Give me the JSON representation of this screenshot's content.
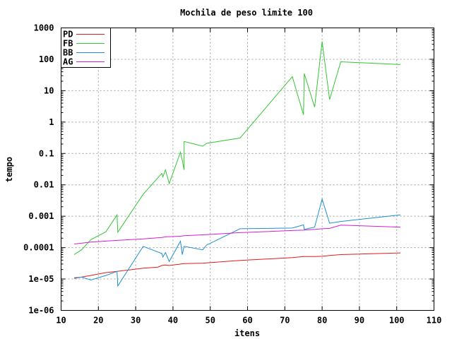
{
  "chart_data": {
    "type": "line",
    "title": "Mochila de peso limite 100",
    "xlabel": "itens",
    "ylabel": "tempo",
    "xlim": [
      10,
      110
    ],
    "ylim": [
      1e-06,
      1000
    ],
    "yscale": "log",
    "grid": true,
    "legend_position": "top-left",
    "x_ticks": [
      "10",
      "20",
      "30",
      "40",
      "50",
      "60",
      "70",
      "80",
      "90",
      "100",
      "110"
    ],
    "y_ticks": [
      "1e-06",
      "1e-05",
      "0.0001",
      "0.001",
      "0.01",
      "0.1",
      "1",
      "10",
      "100",
      "1000"
    ],
    "series": [
      {
        "name": "PD",
        "color": "#e41a1c",
        "points": [
          [
            13.5,
            1.05e-05
          ],
          [
            18,
            1.3e-05
          ],
          [
            22,
            1.6e-05
          ],
          [
            25,
            1.75e-05
          ],
          [
            32,
            2.2e-05
          ],
          [
            36,
            2.4e-05
          ],
          [
            37,
            2.7e-05
          ],
          [
            38,
            2.8e-05
          ],
          [
            39,
            2.7e-05
          ],
          [
            42,
            3e-05
          ],
          [
            43,
            3.1e-05
          ],
          [
            48,
            3.2e-05
          ],
          [
            58,
            3.9e-05
          ],
          [
            72,
            4.8e-05
          ],
          [
            75,
            5.2e-05
          ],
          [
            78,
            5.2e-05
          ],
          [
            80,
            5.3e-05
          ],
          [
            82,
            5.6e-05
          ],
          [
            85,
            6e-05
          ],
          [
            101,
            6.8e-05
          ]
        ]
      },
      {
        "name": "FB",
        "color": "#33c633",
        "points": [
          [
            13.5,
            6e-05
          ],
          [
            15.5,
            8.5e-05
          ],
          [
            18,
            0.00018
          ],
          [
            22,
            0.00032
          ],
          [
            25,
            0.0011
          ],
          [
            25.2,
            0.00031
          ],
          [
            32,
            0.005
          ],
          [
            37,
            0.023
          ],
          [
            37.3,
            0.018
          ],
          [
            38,
            0.03
          ],
          [
            39,
            0.011
          ],
          [
            42,
            0.11
          ],
          [
            42.5,
            0.06
          ],
          [
            43,
            0.03
          ],
          [
            43,
            0.24
          ],
          [
            48,
            0.17
          ],
          [
            49,
            0.21
          ],
          [
            58,
            0.31
          ],
          [
            72,
            28
          ],
          [
            75,
            1.7
          ],
          [
            75.2,
            35
          ],
          [
            78,
            3
          ],
          [
            80,
            370
          ],
          [
            82,
            5.2
          ],
          [
            85,
            83
          ],
          [
            101,
            68
          ]
        ]
      },
      {
        "name": "BB",
        "color": "#1f8fcf",
        "points": [
          [
            13.5,
            1.1e-05
          ],
          [
            15.5,
            1.15e-05
          ],
          [
            18,
            9.3e-06
          ],
          [
            22,
            1.3e-05
          ],
          [
            25,
            1.75e-05
          ],
          [
            25.2,
            6e-06
          ],
          [
            32,
            0.00011
          ],
          [
            37,
            6.5e-05
          ],
          [
            37.3,
            5e-05
          ],
          [
            38,
            7e-05
          ],
          [
            39,
            3.6e-05
          ],
          [
            42,
            0.00016
          ],
          [
            42.5,
            6e-05
          ],
          [
            43,
            0.00011
          ],
          [
            48,
            8.5e-05
          ],
          [
            49,
            0.00012
          ],
          [
            58,
            0.0004
          ],
          [
            72,
            0.00042
          ],
          [
            75,
            0.00053
          ],
          [
            75.2,
            0.00038
          ],
          [
            78,
            0.00045
          ],
          [
            80,
            0.0035
          ],
          [
            82,
            0.0006
          ],
          [
            85,
            0.00068
          ],
          [
            101,
            0.0011
          ]
        ]
      },
      {
        "name": "AG",
        "color": "#d21fd2",
        "points": [
          [
            13.5,
            0.00013
          ],
          [
            18,
            0.00015
          ],
          [
            25,
            0.00017
          ],
          [
            32,
            0.00019
          ],
          [
            37,
            0.00021
          ],
          [
            38,
            0.00022
          ],
          [
            42,
            0.00023
          ],
          [
            43,
            0.00024
          ],
          [
            49,
            0.00026
          ],
          [
            58,
            0.0003
          ],
          [
            72,
            0.00035
          ],
          [
            75,
            0.00036
          ],
          [
            78,
            0.00038
          ],
          [
            80,
            0.0004
          ],
          [
            82,
            0.00041
          ],
          [
            85,
            0.00052
          ],
          [
            101,
            0.00045
          ]
        ]
      }
    ]
  }
}
